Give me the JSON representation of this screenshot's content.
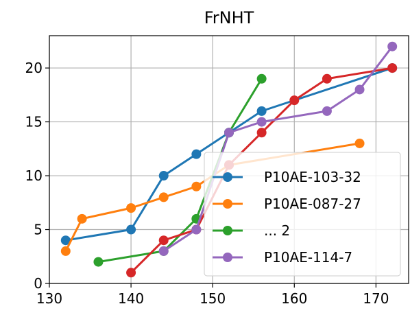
{
  "chart_data": {
    "type": "line",
    "title": "FrNHT",
    "xlabel": "",
    "ylabel": "",
    "xlim": [
      130,
      174
    ],
    "ylim": [
      0,
      23
    ],
    "x_ticks": [
      130,
      140,
      150,
      160,
      170
    ],
    "y_ticks": [
      0,
      5,
      10,
      15,
      20
    ],
    "grid": true,
    "legend_position": "lower-right",
    "series": [
      {
        "name": "P10AE-103-32",
        "color": "#1f77b4",
        "x": [
          132,
          140,
          144,
          148,
          152,
          156,
          172
        ],
        "y": [
          4,
          5,
          10,
          12,
          14,
          16,
          20
        ]
      },
      {
        "name": "P10AE-087-27",
        "color": "#ff7f0e",
        "x": [
          132,
          134,
          140,
          144,
          148,
          152,
          168
        ],
        "y": [
          3,
          6,
          7,
          8,
          9,
          11,
          13
        ]
      },
      {
        "name": "",
        "color": "#2ca02c",
        "x": [
          136,
          144,
          148,
          152,
          156
        ],
        "y": [
          2,
          3,
          6,
          14,
          19
        ]
      },
      {
        "name": "",
        "color": "#d62728",
        "x": [
          140,
          144,
          148,
          152,
          156,
          160,
          164,
          172
        ],
        "y": [
          1,
          4,
          5,
          11,
          14,
          17,
          19,
          20
        ]
      },
      {
        "name": "P10AE-114-7",
        "color": "#9467bd",
        "x": [
          144,
          148,
          152,
          156,
          164,
          168,
          172
        ],
        "y": [
          3,
          5,
          14,
          15,
          16,
          18,
          22
        ]
      }
    ],
    "legend": [
      {
        "label": "P10AE-103-32",
        "color": "#1f77b4"
      },
      {
        "label": "P10AE-087-27",
        "color": "#ff7f0e"
      },
      {
        "label": "... 2",
        "color": "#2ca02c"
      },
      {
        "label": "P10AE-114-7",
        "color": "#9467bd"
      }
    ]
  }
}
